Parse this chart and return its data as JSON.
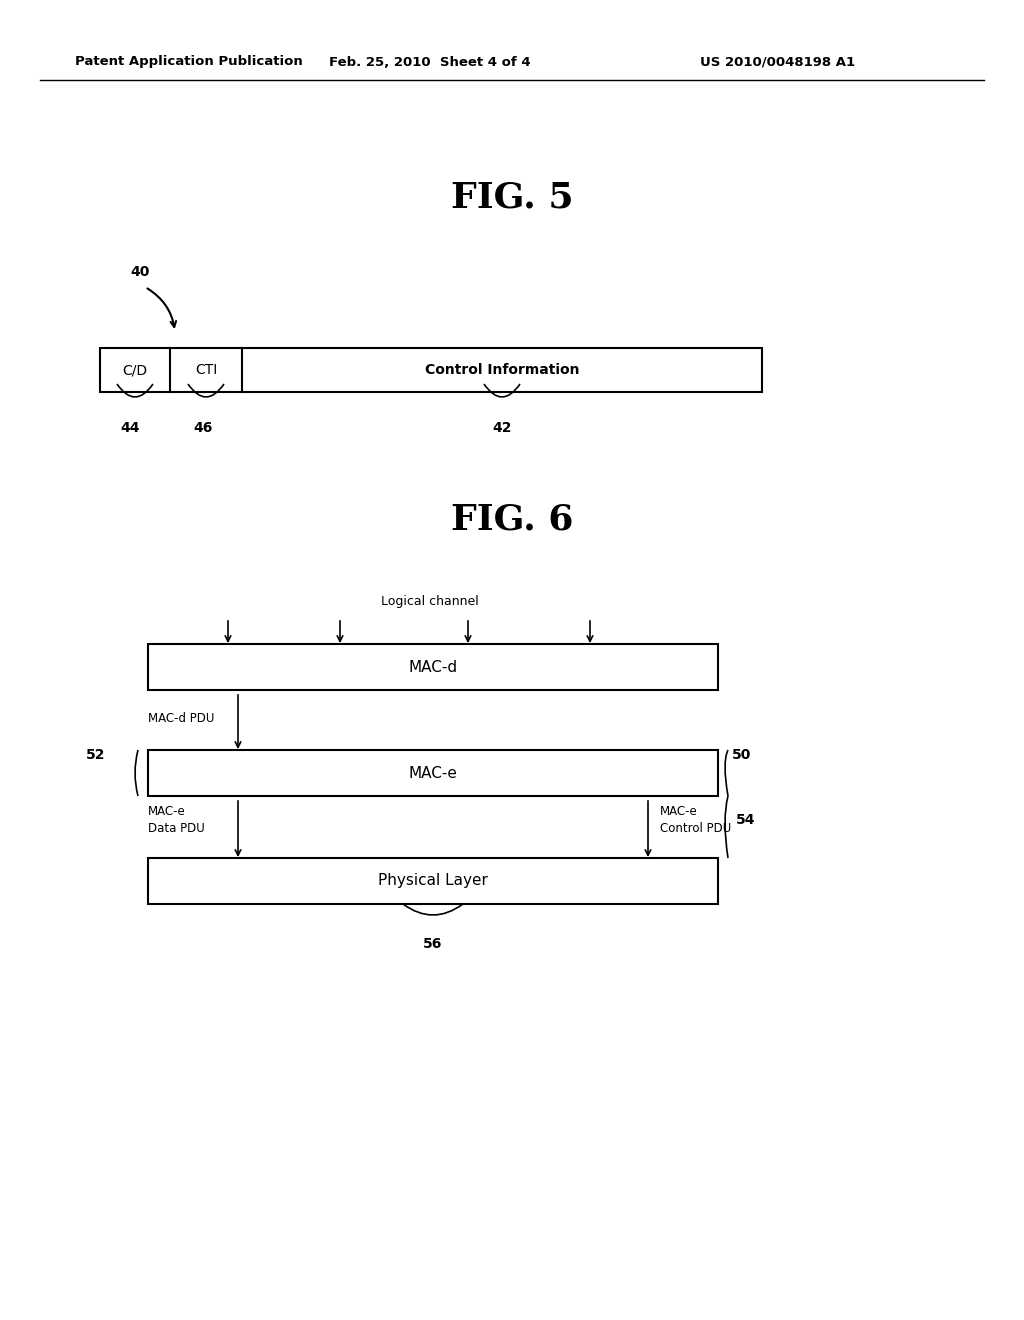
{
  "bg_color": "#ffffff",
  "header_left": "Patent Application Publication",
  "header_mid": "Feb. 25, 2010  Sheet 4 of 4",
  "header_right": "US 2010/0048198 A1",
  "fig5_title": "FIG. 5",
  "fig6_title": "FIG. 6",
  "fig5": {
    "label_40": "40",
    "cd_label": "C/D",
    "cti_label": "CTI",
    "ci_label": "Control Information",
    "label_44": "44",
    "label_46": "46",
    "label_42": "42"
  },
  "fig6": {
    "logical_channel_label": "Logical channel",
    "macd_label": "MAC-d",
    "mace_label": "MAC-e",
    "physical_label": "Physical Layer",
    "macd_pdu_label": "MAC-d PDU",
    "mace_data_label": "MAC-e\nData PDU",
    "mace_ctrl_label": "MAC-e\nControl PDU",
    "label_50": "50",
    "label_52": "52",
    "label_54": "54",
    "label_56": "56"
  }
}
